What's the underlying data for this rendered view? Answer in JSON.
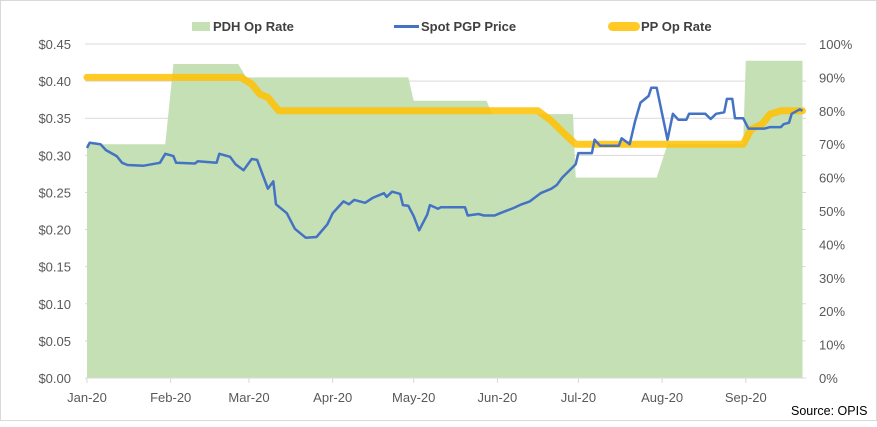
{
  "chart_data": {
    "type": "combo",
    "source": "Source: OPIS",
    "x_range": [
      "2020-01-01",
      "2020-09-22"
    ],
    "x_ticks": [
      {
        "date": "2020-01-01",
        "label": "Jan-20"
      },
      {
        "date": "2020-02-01",
        "label": "Feb-20"
      },
      {
        "date": "2020-03-01",
        "label": "Mar-20"
      },
      {
        "date": "2020-04-01",
        "label": "Apr-20"
      },
      {
        "date": "2020-05-01",
        "label": "May-20"
      },
      {
        "date": "2020-06-01",
        "label": "Jun-20"
      },
      {
        "date": "2020-07-01",
        "label": "Jul-20"
      },
      {
        "date": "2020-08-01",
        "label": "Aug-20"
      },
      {
        "date": "2020-09-01",
        "label": "Sep-20"
      }
    ],
    "y_left": {
      "range": [
        0,
        0.45
      ],
      "ticks": [
        "$0.00",
        "$0.05",
        "$0.10",
        "$0.15",
        "$0.20",
        "$0.25",
        "$0.30",
        "$0.35",
        "$0.40",
        "$0.45"
      ]
    },
    "y_right": {
      "range": [
        0,
        100
      ],
      "ticks": [
        "0%",
        "10%",
        "20%",
        "30%",
        "40%",
        "50%",
        "60%",
        "70%",
        "80%",
        "90%",
        "100%"
      ]
    },
    "grid": true,
    "legend_position": "top",
    "series": [
      {
        "name": "PDH Op Rate",
        "type": "area",
        "axis": "right",
        "color": "#c5e0b4",
        "points": [
          [
            "2020-01-01",
            70
          ],
          [
            "2020-01-30",
            70
          ],
          [
            "2020-02-02",
            94
          ],
          [
            "2020-02-26",
            94
          ],
          [
            "2020-02-29",
            90
          ],
          [
            "2020-04-29",
            90
          ],
          [
            "2020-05-01",
            83
          ],
          [
            "2020-05-28",
            83
          ],
          [
            "2020-05-30",
            79
          ],
          [
            "2020-06-29",
            79
          ],
          [
            "2020-06-30",
            60
          ],
          [
            "2020-07-30",
            60
          ],
          [
            "2020-08-03",
            70
          ],
          [
            "2020-08-31",
            70
          ],
          [
            "2020-09-01",
            95
          ],
          [
            "2020-09-22",
            95
          ]
        ]
      },
      {
        "name": "Spot PGP Price",
        "type": "line",
        "axis": "left",
        "color": "#4472c4",
        "points": [
          [
            "2020-01-01",
            0.31
          ],
          [
            "2020-01-02",
            0.317
          ],
          [
            "2020-01-06",
            0.315
          ],
          [
            "2020-01-08",
            0.307
          ],
          [
            "2020-01-12",
            0.299
          ],
          [
            "2020-01-14",
            0.29
          ],
          [
            "2020-01-16",
            0.287
          ],
          [
            "2020-01-22",
            0.286
          ],
          [
            "2020-01-28",
            0.29
          ],
          [
            "2020-01-30",
            0.302
          ],
          [
            "2020-02-02",
            0.299
          ],
          [
            "2020-02-03",
            0.29
          ],
          [
            "2020-02-10",
            0.289
          ],
          [
            "2020-02-11",
            0.292
          ],
          [
            "2020-02-18",
            0.29
          ],
          [
            "2020-02-19",
            0.302
          ],
          [
            "2020-02-23",
            0.298
          ],
          [
            "2020-02-25",
            0.288
          ],
          [
            "2020-02-28",
            0.28
          ],
          [
            "2020-03-02",
            0.295
          ],
          [
            "2020-03-04",
            0.294
          ],
          [
            "2020-03-08",
            0.255
          ],
          [
            "2020-03-10",
            0.265
          ],
          [
            "2020-03-11",
            0.234
          ],
          [
            "2020-03-15",
            0.222
          ],
          [
            "2020-03-18",
            0.201
          ],
          [
            "2020-03-22",
            0.189
          ],
          [
            "2020-03-26",
            0.19
          ],
          [
            "2020-03-30",
            0.207
          ],
          [
            "2020-04-01",
            0.222
          ],
          [
            "2020-04-05",
            0.238
          ],
          [
            "2020-04-07",
            0.234
          ],
          [
            "2020-04-09",
            0.24
          ],
          [
            "2020-04-13",
            0.236
          ],
          [
            "2020-04-16",
            0.243
          ],
          [
            "2020-04-20",
            0.249
          ],
          [
            "2020-04-21",
            0.244
          ],
          [
            "2020-04-23",
            0.251
          ],
          [
            "2020-04-26",
            0.248
          ],
          [
            "2020-04-27",
            0.233
          ],
          [
            "2020-04-29",
            0.232
          ],
          [
            "2020-05-01",
            0.218
          ],
          [
            "2020-05-03",
            0.199
          ],
          [
            "2020-05-06",
            0.22
          ],
          [
            "2020-05-07",
            0.233
          ],
          [
            "2020-05-10",
            0.228
          ],
          [
            "2020-05-11",
            0.23
          ],
          [
            "2020-05-20",
            0.23
          ],
          [
            "2020-05-21",
            0.219
          ],
          [
            "2020-05-25",
            0.221
          ],
          [
            "2020-05-27",
            0.219
          ],
          [
            "2020-05-31",
            0.219
          ],
          [
            "2020-06-02",
            0.222
          ],
          [
            "2020-06-07",
            0.229
          ],
          [
            "2020-06-10",
            0.234
          ],
          [
            "2020-06-13",
            0.238
          ],
          [
            "2020-06-17",
            0.249
          ],
          [
            "2020-06-21",
            0.255
          ],
          [
            "2020-06-23",
            0.26
          ],
          [
            "2020-06-25",
            0.27
          ],
          [
            "2020-06-30",
            0.288
          ],
          [
            "2020-07-01",
            0.303
          ],
          [
            "2020-07-06",
            0.303
          ],
          [
            "2020-07-07",
            0.321
          ],
          [
            "2020-07-09",
            0.313
          ],
          [
            "2020-07-16",
            0.313
          ],
          [
            "2020-07-17",
            0.323
          ],
          [
            "2020-07-20",
            0.315
          ],
          [
            "2020-07-22",
            0.346
          ],
          [
            "2020-07-24",
            0.371
          ],
          [
            "2020-07-27",
            0.38
          ],
          [
            "2020-07-28",
            0.391
          ],
          [
            "2020-07-30",
            0.391
          ],
          [
            "2020-08-03",
            0.321
          ],
          [
            "2020-08-05",
            0.356
          ],
          [
            "2020-08-07",
            0.348
          ],
          [
            "2020-08-10",
            0.348
          ],
          [
            "2020-08-11",
            0.356
          ],
          [
            "2020-08-17",
            0.356
          ],
          [
            "2020-08-19",
            0.349
          ],
          [
            "2020-08-21",
            0.356
          ],
          [
            "2020-08-24",
            0.358
          ],
          [
            "2020-08-25",
            0.376
          ],
          [
            "2020-08-27",
            0.376
          ],
          [
            "2020-08-28",
            0.35
          ],
          [
            "2020-08-31",
            0.35
          ],
          [
            "2020-09-02",
            0.336
          ],
          [
            "2020-09-08",
            0.336
          ],
          [
            "2020-09-10",
            0.338
          ],
          [
            "2020-09-14",
            0.338
          ],
          [
            "2020-09-15",
            0.342
          ],
          [
            "2020-09-17",
            0.344
          ],
          [
            "2020-09-18",
            0.356
          ],
          [
            "2020-09-21",
            0.362
          ],
          [
            "2020-09-22",
            0.36
          ]
        ]
      },
      {
        "name": "PP Op Rate",
        "type": "line",
        "axis": "right",
        "color": "#ffc000",
        "points": [
          [
            "2020-01-01",
            90
          ],
          [
            "2020-02-27",
            90
          ],
          [
            "2020-03-02",
            88
          ],
          [
            "2020-03-05",
            85
          ],
          [
            "2020-03-08",
            84
          ],
          [
            "2020-03-12",
            80
          ],
          [
            "2020-06-16",
            80
          ],
          [
            "2020-06-21",
            77
          ],
          [
            "2020-06-26",
            73
          ],
          [
            "2020-06-30",
            70
          ],
          [
            "2020-08-31",
            70
          ],
          [
            "2020-09-03",
            74.5
          ],
          [
            "2020-09-07",
            76
          ],
          [
            "2020-09-10",
            79
          ],
          [
            "2020-09-14",
            80
          ],
          [
            "2020-09-22",
            80
          ]
        ]
      }
    ]
  }
}
